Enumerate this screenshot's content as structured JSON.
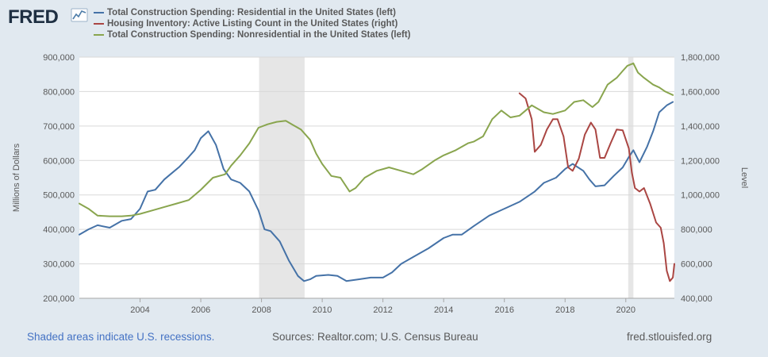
{
  "header": {
    "logo_text": "FRED",
    "logo_icon": "chart-graph-icon"
  },
  "footer": {
    "recessions_note": "Shaded areas indicate U.S. recessions.",
    "sources": "Sources: Realtor.com; U.S. Census Bureau",
    "site": "fred.stlouisfed.org"
  },
  "colors": {
    "background": "#e1e9f0",
    "plot_background": "#ffffff",
    "residential": "#4572a7",
    "housing_inventory": "#aa4643",
    "nonresidential": "#89a54e",
    "recession": "#e6e6e6"
  },
  "chart_data": {
    "type": "line",
    "legend_position": "top-left",
    "grid": true,
    "xlim": [
      2002.0,
      2021.6
    ],
    "x_ticks": [
      2004,
      2006,
      2008,
      2010,
      2012,
      2014,
      2016,
      2018,
      2020
    ],
    "x_tick_labels": [
      "2004",
      "2006",
      "2008",
      "2010",
      "2012",
      "2014",
      "2016",
      "2018",
      "2020"
    ],
    "y_left": {
      "label": "Millions of Dollars",
      "lim": [
        200000,
        900000
      ],
      "ticks": [
        200000,
        300000,
        400000,
        500000,
        600000,
        700000,
        800000,
        900000
      ],
      "tick_labels": [
        "200,000",
        "300,000",
        "400,000",
        "500,000",
        "600,000",
        "700,000",
        "800,000",
        "900,000"
      ]
    },
    "y_right": {
      "label": "Level",
      "lim": [
        400000,
        1800000
      ],
      "ticks": [
        400000,
        600000,
        800000,
        1000000,
        1200000,
        1400000,
        1600000,
        1800000
      ],
      "tick_labels": [
        "400,000",
        "600,000",
        "800,000",
        "1,000,000",
        "1,200,000",
        "1,400,000",
        "1,600,000",
        "1,800,000"
      ]
    },
    "recessions": [
      [
        2007.92,
        2009.42
      ],
      [
        2020.08,
        2020.25
      ]
    ],
    "series": [
      {
        "name": "Total Construction Spending: Residential in the United States (left)",
        "axis": "left",
        "color": "#4572a7",
        "points": [
          [
            2002.0,
            385000
          ],
          [
            2002.3,
            400000
          ],
          [
            2002.6,
            412000
          ],
          [
            2003.0,
            405000
          ],
          [
            2003.4,
            425000
          ],
          [
            2003.7,
            430000
          ],
          [
            2004.0,
            460000
          ],
          [
            2004.25,
            510000
          ],
          [
            2004.5,
            515000
          ],
          [
            2004.8,
            545000
          ],
          [
            2005.0,
            560000
          ],
          [
            2005.3,
            582000
          ],
          [
            2005.6,
            610000
          ],
          [
            2005.8,
            630000
          ],
          [
            2006.0,
            665000
          ],
          [
            2006.25,
            685000
          ],
          [
            2006.5,
            645000
          ],
          [
            2006.75,
            575000
          ],
          [
            2007.0,
            545000
          ],
          [
            2007.3,
            535000
          ],
          [
            2007.6,
            510000
          ],
          [
            2007.9,
            455000
          ],
          [
            2008.1,
            400000
          ],
          [
            2008.3,
            395000
          ],
          [
            2008.6,
            365000
          ],
          [
            2008.9,
            310000
          ],
          [
            2009.2,
            265000
          ],
          [
            2009.4,
            250000
          ],
          [
            2009.6,
            255000
          ],
          [
            2009.8,
            265000
          ],
          [
            2010.2,
            268000
          ],
          [
            2010.5,
            265000
          ],
          [
            2010.8,
            250000
          ],
          [
            2011.2,
            255000
          ],
          [
            2011.6,
            260000
          ],
          [
            2012.0,
            260000
          ],
          [
            2012.3,
            275000
          ],
          [
            2012.6,
            300000
          ],
          [
            2013.0,
            320000
          ],
          [
            2013.5,
            345000
          ],
          [
            2014.0,
            375000
          ],
          [
            2014.3,
            385000
          ],
          [
            2014.6,
            385000
          ],
          [
            2015.0,
            410000
          ],
          [
            2015.5,
            440000
          ],
          [
            2016.0,
            460000
          ],
          [
            2016.5,
            480000
          ],
          [
            2017.0,
            510000
          ],
          [
            2017.3,
            535000
          ],
          [
            2017.7,
            550000
          ],
          [
            2018.0,
            575000
          ],
          [
            2018.25,
            590000
          ],
          [
            2018.6,
            570000
          ],
          [
            2018.8,
            545000
          ],
          [
            2019.0,
            525000
          ],
          [
            2019.3,
            528000
          ],
          [
            2019.6,
            555000
          ],
          [
            2019.9,
            580000
          ],
          [
            2020.1,
            610000
          ],
          [
            2020.25,
            630000
          ],
          [
            2020.45,
            595000
          ],
          [
            2020.7,
            640000
          ],
          [
            2020.9,
            685000
          ],
          [
            2021.1,
            740000
          ],
          [
            2021.35,
            760000
          ],
          [
            2021.55,
            770000
          ]
        ]
      },
      {
        "name": "Housing Inventory: Active Listing Count in the United States (right)",
        "axis": "right",
        "color": "#aa4643",
        "points": [
          [
            2016.5,
            1590000
          ],
          [
            2016.7,
            1560000
          ],
          [
            2016.9,
            1440000
          ],
          [
            2017.0,
            1250000
          ],
          [
            2017.2,
            1290000
          ],
          [
            2017.4,
            1380000
          ],
          [
            2017.6,
            1440000
          ],
          [
            2017.75,
            1440000
          ],
          [
            2017.95,
            1340000
          ],
          [
            2018.1,
            1160000
          ],
          [
            2018.25,
            1140000
          ],
          [
            2018.45,
            1210000
          ],
          [
            2018.65,
            1350000
          ],
          [
            2018.85,
            1420000
          ],
          [
            2019.0,
            1380000
          ],
          [
            2019.15,
            1215000
          ],
          [
            2019.3,
            1215000
          ],
          [
            2019.5,
            1300000
          ],
          [
            2019.7,
            1380000
          ],
          [
            2019.9,
            1375000
          ],
          [
            2020.1,
            1270000
          ],
          [
            2020.2,
            1130000
          ],
          [
            2020.3,
            1040000
          ],
          [
            2020.45,
            1020000
          ],
          [
            2020.6,
            1040000
          ],
          [
            2020.8,
            950000
          ],
          [
            2021.0,
            840000
          ],
          [
            2021.15,
            810000
          ],
          [
            2021.25,
            720000
          ],
          [
            2021.35,
            560000
          ],
          [
            2021.45,
            500000
          ],
          [
            2021.55,
            520000
          ],
          [
            2021.6,
            600000
          ]
        ]
      },
      {
        "name": "Total Construction Spending: Nonresidential in the United States (left)",
        "axis": "left",
        "color": "#89a54e",
        "points": [
          [
            2002.0,
            475000
          ],
          [
            2002.3,
            460000
          ],
          [
            2002.6,
            440000
          ],
          [
            2003.0,
            438000
          ],
          [
            2003.4,
            438000
          ],
          [
            2003.7,
            440000
          ],
          [
            2004.0,
            445000
          ],
          [
            2004.4,
            455000
          ],
          [
            2004.8,
            465000
          ],
          [
            2005.2,
            475000
          ],
          [
            2005.6,
            485000
          ],
          [
            2006.0,
            515000
          ],
          [
            2006.4,
            550000
          ],
          [
            2006.8,
            560000
          ],
          [
            2007.0,
            585000
          ],
          [
            2007.3,
            615000
          ],
          [
            2007.6,
            650000
          ],
          [
            2007.9,
            695000
          ],
          [
            2008.2,
            705000
          ],
          [
            2008.5,
            712000
          ],
          [
            2008.8,
            715000
          ],
          [
            2009.0,
            705000
          ],
          [
            2009.3,
            690000
          ],
          [
            2009.6,
            660000
          ],
          [
            2009.8,
            620000
          ],
          [
            2010.0,
            590000
          ],
          [
            2010.3,
            555000
          ],
          [
            2010.6,
            550000
          ],
          [
            2010.9,
            510000
          ],
          [
            2011.1,
            520000
          ],
          [
            2011.4,
            550000
          ],
          [
            2011.8,
            570000
          ],
          [
            2012.2,
            580000
          ],
          [
            2012.6,
            570000
          ],
          [
            2013.0,
            560000
          ],
          [
            2013.3,
            575000
          ],
          [
            2013.7,
            600000
          ],
          [
            2014.0,
            615000
          ],
          [
            2014.4,
            630000
          ],
          [
            2014.8,
            650000
          ],
          [
            2015.0,
            655000
          ],
          [
            2015.3,
            670000
          ],
          [
            2015.6,
            720000
          ],
          [
            2015.9,
            745000
          ],
          [
            2016.2,
            725000
          ],
          [
            2016.5,
            730000
          ],
          [
            2016.9,
            760000
          ],
          [
            2017.3,
            740000
          ],
          [
            2017.6,
            735000
          ],
          [
            2018.0,
            745000
          ],
          [
            2018.3,
            770000
          ],
          [
            2018.6,
            775000
          ],
          [
            2018.9,
            755000
          ],
          [
            2019.1,
            770000
          ],
          [
            2019.4,
            820000
          ],
          [
            2019.7,
            840000
          ],
          [
            2019.9,
            860000
          ],
          [
            2020.05,
            875000
          ],
          [
            2020.25,
            882000
          ],
          [
            2020.4,
            855000
          ],
          [
            2020.6,
            840000
          ],
          [
            2020.9,
            820000
          ],
          [
            2021.1,
            812000
          ],
          [
            2021.3,
            800000
          ],
          [
            2021.55,
            790000
          ]
        ]
      }
    ]
  }
}
